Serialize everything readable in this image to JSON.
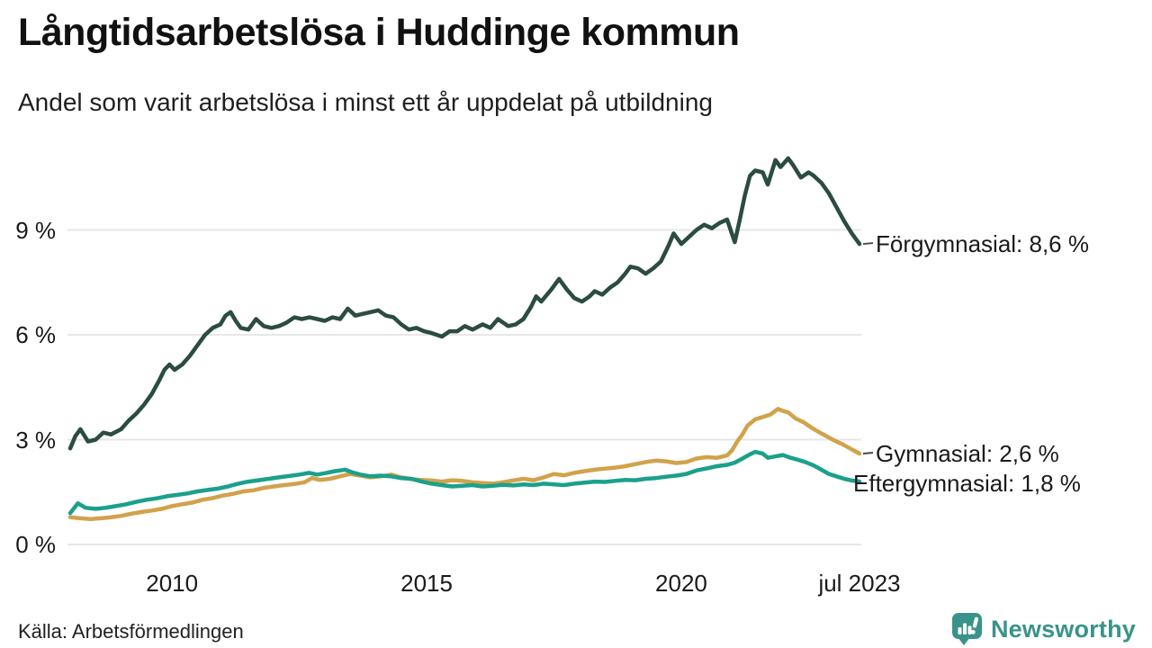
{
  "header": {
    "title": "Långtidsarbetslösa i Huddinge kommun",
    "subtitle": "Andel som varit arbetslösa i minst ett år uppdelat på utbildning"
  },
  "chart_data": {
    "type": "line",
    "title": "Långtidsarbetslösa i Huddinge kommun",
    "subtitle": "Andel som varit arbetslösa i minst ett år uppdelat på utbildning",
    "unit": "%",
    "grid": "horizontal",
    "legend_position": "right-end-labels",
    "x_axis": {
      "range": [
        2008.0,
        2023.5
      ],
      "ticks": [
        {
          "x": 2010,
          "label": "2010"
        },
        {
          "x": 2015,
          "label": "2015"
        },
        {
          "x": 2020,
          "label": "2020"
        },
        {
          "x": 2023.5,
          "label": "jul 2023"
        }
      ]
    },
    "y_axis": {
      "range": [
        0,
        11.2
      ],
      "ticks": [
        {
          "value": 9,
          "label": "9 %"
        },
        {
          "value": 6,
          "label": "6 %"
        },
        {
          "value": 3,
          "label": "3 %"
        },
        {
          "value": 0,
          "label": "0 %"
        }
      ]
    },
    "series": [
      {
        "name": "Förgymnasial",
        "end_label": "Förgymnasial: 8,6 %",
        "end_value": 8.6,
        "color": "#2b4c40",
        "dash_connector": true,
        "points": [
          [
            2008.0,
            2.75
          ],
          [
            2008.1,
            3.1
          ],
          [
            2008.2,
            3.3
          ],
          [
            2008.35,
            2.95
          ],
          [
            2008.5,
            3.0
          ],
          [
            2008.65,
            3.2
          ],
          [
            2008.8,
            3.15
          ],
          [
            2009.0,
            3.3
          ],
          [
            2009.15,
            3.55
          ],
          [
            2009.3,
            3.75
          ],
          [
            2009.45,
            4.0
          ],
          [
            2009.6,
            4.3
          ],
          [
            2009.75,
            4.7
          ],
          [
            2009.85,
            5.0
          ],
          [
            2009.95,
            5.15
          ],
          [
            2010.05,
            5.0
          ],
          [
            2010.2,
            5.15
          ],
          [
            2010.35,
            5.4
          ],
          [
            2010.5,
            5.7
          ],
          [
            2010.65,
            6.0
          ],
          [
            2010.8,
            6.2
          ],
          [
            2010.95,
            6.3
          ],
          [
            2011.05,
            6.55
          ],
          [
            2011.15,
            6.65
          ],
          [
            2011.25,
            6.4
          ],
          [
            2011.35,
            6.2
          ],
          [
            2011.5,
            6.15
          ],
          [
            2011.65,
            6.45
          ],
          [
            2011.8,
            6.25
          ],
          [
            2011.95,
            6.2
          ],
          [
            2012.1,
            6.25
          ],
          [
            2012.25,
            6.35
          ],
          [
            2012.4,
            6.5
          ],
          [
            2012.55,
            6.45
          ],
          [
            2012.7,
            6.5
          ],
          [
            2012.85,
            6.45
          ],
          [
            2013.0,
            6.4
          ],
          [
            2013.15,
            6.5
          ],
          [
            2013.3,
            6.45
          ],
          [
            2013.45,
            6.75
          ],
          [
            2013.6,
            6.55
          ],
          [
            2013.75,
            6.6
          ],
          [
            2013.9,
            6.65
          ],
          [
            2014.05,
            6.7
          ],
          [
            2014.2,
            6.55
          ],
          [
            2014.35,
            6.5
          ],
          [
            2014.5,
            6.3
          ],
          [
            2014.65,
            6.15
          ],
          [
            2014.8,
            6.2
          ],
          [
            2014.95,
            6.1
          ],
          [
            2015.1,
            6.05
          ],
          [
            2015.3,
            5.95
          ],
          [
            2015.45,
            6.1
          ],
          [
            2015.6,
            6.1
          ],
          [
            2015.75,
            6.25
          ],
          [
            2015.9,
            6.15
          ],
          [
            2016.1,
            6.3
          ],
          [
            2016.25,
            6.2
          ],
          [
            2016.4,
            6.45
          ],
          [
            2016.6,
            6.25
          ],
          [
            2016.75,
            6.3
          ],
          [
            2016.9,
            6.45
          ],
          [
            2017.05,
            6.8
          ],
          [
            2017.15,
            7.1
          ],
          [
            2017.25,
            6.95
          ],
          [
            2017.45,
            7.3
          ],
          [
            2017.6,
            7.6
          ],
          [
            2017.75,
            7.3
          ],
          [
            2017.9,
            7.05
          ],
          [
            2018.05,
            6.95
          ],
          [
            2018.2,
            7.1
          ],
          [
            2018.3,
            7.25
          ],
          [
            2018.45,
            7.15
          ],
          [
            2018.6,
            7.35
          ],
          [
            2018.75,
            7.5
          ],
          [
            2018.9,
            7.75
          ],
          [
            2019.0,
            7.95
          ],
          [
            2019.15,
            7.9
          ],
          [
            2019.3,
            7.75
          ],
          [
            2019.45,
            7.9
          ],
          [
            2019.6,
            8.1
          ],
          [
            2019.75,
            8.55
          ],
          [
            2019.85,
            8.9
          ],
          [
            2020.0,
            8.6
          ],
          [
            2020.15,
            8.8
          ],
          [
            2020.3,
            9.0
          ],
          [
            2020.45,
            9.15
          ],
          [
            2020.6,
            9.05
          ],
          [
            2020.75,
            9.2
          ],
          [
            2020.9,
            9.3
          ],
          [
            2021.05,
            8.65
          ],
          [
            2021.15,
            9.3
          ],
          [
            2021.25,
            10.0
          ],
          [
            2021.35,
            10.55
          ],
          [
            2021.45,
            10.7
          ],
          [
            2021.6,
            10.65
          ],
          [
            2021.7,
            10.3
          ],
          [
            2021.85,
            11.0
          ],
          [
            2021.95,
            10.8
          ],
          [
            2022.1,
            11.05
          ],
          [
            2022.2,
            10.85
          ],
          [
            2022.35,
            10.5
          ],
          [
            2022.5,
            10.65
          ],
          [
            2022.6,
            10.55
          ],
          [
            2022.75,
            10.35
          ],
          [
            2022.9,
            10.05
          ],
          [
            2023.05,
            9.65
          ],
          [
            2023.2,
            9.25
          ],
          [
            2023.35,
            8.9
          ],
          [
            2023.5,
            8.6
          ]
        ]
      },
      {
        "name": "Gymnasial",
        "end_label": "Gymnasial: 2,6 %",
        "end_value": 2.6,
        "color": "#d2a24b",
        "dash_connector": true,
        "points": [
          [
            2008.0,
            0.78
          ],
          [
            2008.2,
            0.75
          ],
          [
            2008.4,
            0.73
          ],
          [
            2008.6,
            0.75
          ],
          [
            2008.8,
            0.78
          ],
          [
            2009.0,
            0.82
          ],
          [
            2009.2,
            0.88
          ],
          [
            2009.4,
            0.93
          ],
          [
            2009.6,
            0.97
          ],
          [
            2009.8,
            1.02
          ],
          [
            2010.0,
            1.1
          ],
          [
            2010.2,
            1.15
          ],
          [
            2010.4,
            1.2
          ],
          [
            2010.6,
            1.28
          ],
          [
            2010.8,
            1.33
          ],
          [
            2011.0,
            1.4
          ],
          [
            2011.2,
            1.45
          ],
          [
            2011.4,
            1.52
          ],
          [
            2011.6,
            1.55
          ],
          [
            2011.8,
            1.62
          ],
          [
            2012.0,
            1.66
          ],
          [
            2012.2,
            1.7
          ],
          [
            2012.4,
            1.73
          ],
          [
            2012.6,
            1.78
          ],
          [
            2012.75,
            1.9
          ],
          [
            2012.9,
            1.85
          ],
          [
            2013.1,
            1.88
          ],
          [
            2013.3,
            1.95
          ],
          [
            2013.5,
            2.02
          ],
          [
            2013.7,
            1.97
          ],
          [
            2013.9,
            1.92
          ],
          [
            2014.1,
            1.95
          ],
          [
            2014.3,
            2.0
          ],
          [
            2014.5,
            1.92
          ],
          [
            2014.7,
            1.87
          ],
          [
            2014.9,
            1.85
          ],
          [
            2015.1,
            1.83
          ],
          [
            2015.3,
            1.8
          ],
          [
            2015.5,
            1.84
          ],
          [
            2015.7,
            1.82
          ],
          [
            2015.9,
            1.78
          ],
          [
            2016.1,
            1.76
          ],
          [
            2016.3,
            1.74
          ],
          [
            2016.5,
            1.78
          ],
          [
            2016.7,
            1.83
          ],
          [
            2016.9,
            1.88
          ],
          [
            2017.1,
            1.84
          ],
          [
            2017.3,
            1.92
          ],
          [
            2017.5,
            2.02
          ],
          [
            2017.7,
            1.98
          ],
          [
            2017.9,
            2.05
          ],
          [
            2018.1,
            2.1
          ],
          [
            2018.3,
            2.14
          ],
          [
            2018.5,
            2.17
          ],
          [
            2018.7,
            2.2
          ],
          [
            2018.9,
            2.24
          ],
          [
            2019.1,
            2.3
          ],
          [
            2019.3,
            2.36
          ],
          [
            2019.5,
            2.4
          ],
          [
            2019.7,
            2.38
          ],
          [
            2019.9,
            2.33
          ],
          [
            2020.1,
            2.36
          ],
          [
            2020.3,
            2.46
          ],
          [
            2020.5,
            2.5
          ],
          [
            2020.7,
            2.48
          ],
          [
            2020.9,
            2.55
          ],
          [
            2021.0,
            2.7
          ],
          [
            2021.1,
            2.95
          ],
          [
            2021.2,
            3.15
          ],
          [
            2021.3,
            3.4
          ],
          [
            2021.45,
            3.58
          ],
          [
            2021.6,
            3.65
          ],
          [
            2021.75,
            3.72
          ],
          [
            2021.9,
            3.88
          ],
          [
            2022.0,
            3.82
          ],
          [
            2022.1,
            3.78
          ],
          [
            2022.25,
            3.6
          ],
          [
            2022.4,
            3.5
          ],
          [
            2022.55,
            3.35
          ],
          [
            2022.7,
            3.22
          ],
          [
            2022.85,
            3.1
          ],
          [
            2023.0,
            2.98
          ],
          [
            2023.15,
            2.88
          ],
          [
            2023.3,
            2.76
          ],
          [
            2023.4,
            2.68
          ],
          [
            2023.5,
            2.6
          ]
        ]
      },
      {
        "name": "Eftergymnasial",
        "end_label": "Eftergymnasial: 1,8 %",
        "end_value": 1.8,
        "color": "#1ba08b",
        "dash_connector": false,
        "points": [
          [
            2008.0,
            0.9
          ],
          [
            2008.15,
            1.18
          ],
          [
            2008.3,
            1.05
          ],
          [
            2008.5,
            1.02
          ],
          [
            2008.7,
            1.05
          ],
          [
            2008.9,
            1.1
          ],
          [
            2009.1,
            1.15
          ],
          [
            2009.3,
            1.22
          ],
          [
            2009.5,
            1.28
          ],
          [
            2009.7,
            1.32
          ],
          [
            2009.9,
            1.38
          ],
          [
            2010.1,
            1.42
          ],
          [
            2010.3,
            1.46
          ],
          [
            2010.5,
            1.52
          ],
          [
            2010.7,
            1.56
          ],
          [
            2010.9,
            1.6
          ],
          [
            2011.1,
            1.66
          ],
          [
            2011.3,
            1.74
          ],
          [
            2011.5,
            1.8
          ],
          [
            2011.7,
            1.84
          ],
          [
            2011.9,
            1.88
          ],
          [
            2012.1,
            1.92
          ],
          [
            2012.3,
            1.96
          ],
          [
            2012.5,
            2.0
          ],
          [
            2012.7,
            2.05
          ],
          [
            2012.85,
            2.0
          ],
          [
            2013.0,
            2.04
          ],
          [
            2013.2,
            2.1
          ],
          [
            2013.4,
            2.14
          ],
          [
            2013.55,
            2.06
          ],
          [
            2013.7,
            2.0
          ],
          [
            2013.9,
            1.95
          ],
          [
            2014.1,
            1.97
          ],
          [
            2014.3,
            1.95
          ],
          [
            2014.5,
            1.9
          ],
          [
            2014.7,
            1.88
          ],
          [
            2014.9,
            1.8
          ],
          [
            2015.1,
            1.74
          ],
          [
            2015.3,
            1.7
          ],
          [
            2015.5,
            1.66
          ],
          [
            2015.7,
            1.68
          ],
          [
            2015.9,
            1.7
          ],
          [
            2016.1,
            1.66
          ],
          [
            2016.3,
            1.68
          ],
          [
            2016.5,
            1.71
          ],
          [
            2016.7,
            1.69
          ],
          [
            2016.9,
            1.72
          ],
          [
            2017.1,
            1.7
          ],
          [
            2017.3,
            1.74
          ],
          [
            2017.5,
            1.72
          ],
          [
            2017.7,
            1.7
          ],
          [
            2017.9,
            1.74
          ],
          [
            2018.1,
            1.77
          ],
          [
            2018.3,
            1.8
          ],
          [
            2018.5,
            1.79
          ],
          [
            2018.7,
            1.82
          ],
          [
            2018.9,
            1.85
          ],
          [
            2019.1,
            1.84
          ],
          [
            2019.3,
            1.88
          ],
          [
            2019.5,
            1.9
          ],
          [
            2019.7,
            1.94
          ],
          [
            2019.9,
            1.97
          ],
          [
            2020.1,
            2.02
          ],
          [
            2020.3,
            2.12
          ],
          [
            2020.5,
            2.18
          ],
          [
            2020.7,
            2.24
          ],
          [
            2020.9,
            2.28
          ],
          [
            2021.05,
            2.34
          ],
          [
            2021.2,
            2.46
          ],
          [
            2021.35,
            2.58
          ],
          [
            2021.45,
            2.65
          ],
          [
            2021.6,
            2.6
          ],
          [
            2021.7,
            2.48
          ],
          [
            2021.85,
            2.52
          ],
          [
            2022.0,
            2.56
          ],
          [
            2022.15,
            2.48
          ],
          [
            2022.3,
            2.42
          ],
          [
            2022.45,
            2.35
          ],
          [
            2022.6,
            2.26
          ],
          [
            2022.75,
            2.14
          ],
          [
            2022.9,
            2.02
          ],
          [
            2023.05,
            1.95
          ],
          [
            2023.2,
            1.88
          ],
          [
            2023.35,
            1.83
          ],
          [
            2023.5,
            1.8
          ]
        ]
      }
    ]
  },
  "footer": {
    "source": "Källa: Arbetsförmedlingen",
    "brand": "Newsworthy",
    "brand_color": "#3a938b"
  },
  "style": {
    "gridline_color": "#e7e7e7",
    "connector_color": "#4a4a4a"
  }
}
